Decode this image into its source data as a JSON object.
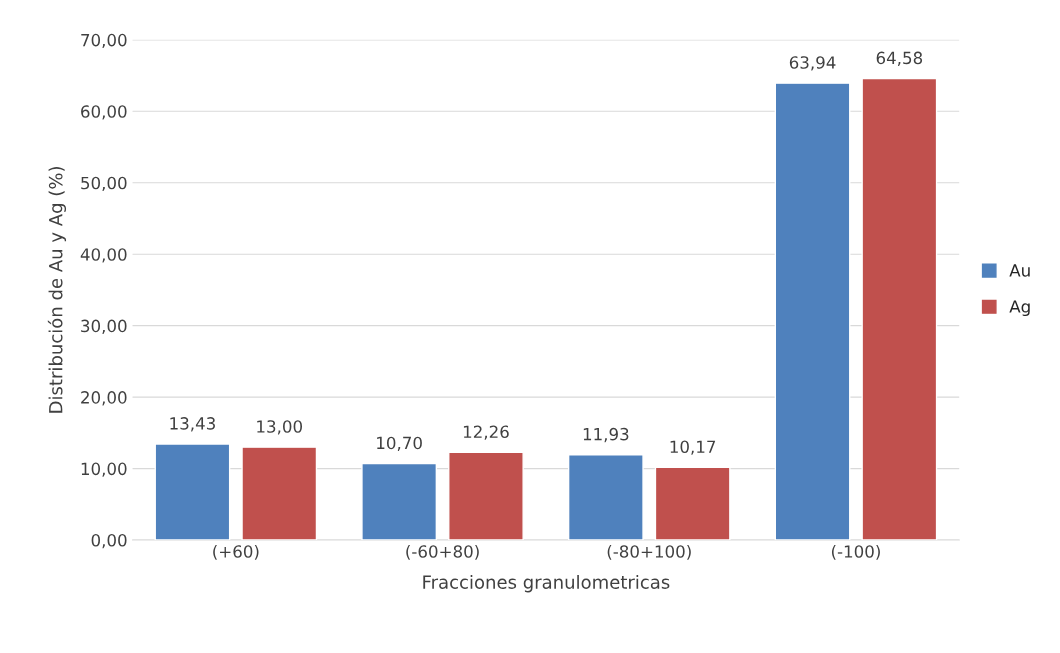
{
  "chart_data": {
    "type": "bar",
    "xlabel": "Fracciones granulometricas",
    "ylabel": "Distribución de Au y Ag (%)",
    "categories": [
      "(+60)",
      "(-60+80)",
      "(-80+100)",
      "(-100)"
    ],
    "series": [
      {
        "name": "Au",
        "color": "#4f81bd",
        "values": [
          13.43,
          10.7,
          11.93,
          63.94
        ],
        "value_labels": [
          "13,43",
          "10,70",
          "11,93",
          "63,94"
        ]
      },
      {
        "name": "Ag",
        "color": "#c0504d",
        "values": [
          13.0,
          12.26,
          10.17,
          64.58
        ],
        "value_labels": [
          "13,00",
          "12,26",
          "10,17",
          "64,58"
        ]
      }
    ],
    "ylim": [
      0,
      70
    ],
    "yticks": [
      {
        "value": 0,
        "label": "0,00"
      },
      {
        "value": 10,
        "label": "10,00"
      },
      {
        "value": 20,
        "label": "20,00"
      },
      {
        "value": 30,
        "label": "30,00"
      },
      {
        "value": 40,
        "label": "40,00"
      },
      {
        "value": 50,
        "label": "50,00"
      },
      {
        "value": 60,
        "label": "60,00"
      },
      {
        "value": 70,
        "label": "70,00"
      }
    ],
    "grid": "y",
    "legend": "right"
  }
}
